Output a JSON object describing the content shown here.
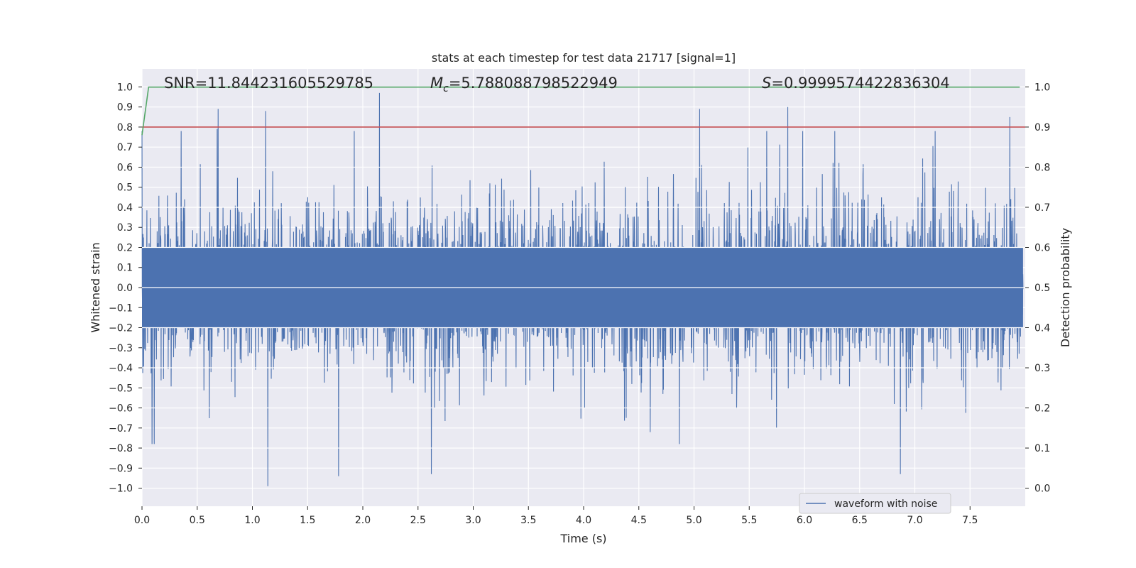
{
  "chart_data": {
    "type": "line",
    "title": "stats at each timestep for test data 21717 [signal=1]",
    "xlabel": "Time (s)",
    "ylabel": "Whitened strain",
    "y2label": "Detection probability",
    "xlim": [
      0.0,
      8.0
    ],
    "ylim": [
      -1.09,
      1.09
    ],
    "y2lim": [
      -0.045,
      1.045
    ],
    "xticks": [
      "0.0",
      "0.5",
      "1.0",
      "1.5",
      "2.0",
      "2.5",
      "3.0",
      "3.5",
      "4.0",
      "4.5",
      "5.0",
      "5.5",
      "6.0",
      "6.5",
      "7.0",
      "7.5"
    ],
    "yticks": [
      "1.0",
      "0.9",
      "0.8",
      "0.7",
      "0.6",
      "0.5",
      "0.4",
      "0.3",
      "0.2",
      "0.1",
      "0.0",
      "−0.1",
      "−0.2",
      "−0.3",
      "−0.4",
      "−0.5",
      "−0.6",
      "−0.7",
      "−0.8",
      "−0.9",
      "−1.0"
    ],
    "y2ticks": [
      "1.0",
      "0.9",
      "0.8",
      "0.7",
      "0.6",
      "0.5",
      "0.4",
      "0.3",
      "0.2",
      "0.1",
      "0.0"
    ],
    "annotations": {
      "snr": "SNR=11.844231605529785",
      "mc_symbol": "M",
      "mc_subscript": "c",
      "mc_value": "=5.788088798522949",
      "s_symbol": "S",
      "s_value": "=0.9999574422836304"
    },
    "series": [
      {
        "name": "waveform with noise",
        "color": "#4c72b0",
        "axis": "left",
        "description": "dense noisy whitened strain, roughly symmetric about 0 with envelope ~±0.4 and spikes up to ~±1.0",
        "peaks": [
          {
            "x": 0.0,
            "y": 0.78
          },
          {
            "x": 0.68,
            "y": 0.79
          },
          {
            "x": 0.69,
            "y": 0.89
          },
          {
            "x": 1.12,
            "y": 0.88
          },
          {
            "x": 1.14,
            "y": -0.99
          },
          {
            "x": 1.78,
            "y": -0.94
          },
          {
            "x": 2.15,
            "y": 0.97
          },
          {
            "x": 2.62,
            "y": -0.93
          },
          {
            "x": 5.05,
            "y": 0.89
          },
          {
            "x": 5.85,
            "y": 0.9
          },
          {
            "x": 6.87,
            "y": -0.93
          },
          {
            "x": 7.86,
            "y": 0.85
          }
        ]
      },
      {
        "name": "detection probability",
        "color": "#55a868",
        "axis": "right",
        "x": [
          0.0,
          0.06,
          7.95
        ],
        "values": [
          0.88,
          0.9995,
          0.9995
        ]
      },
      {
        "name": "threshold",
        "color": "#c44e52",
        "axis": "right",
        "x": [
          0.0,
          8.0
        ],
        "values": [
          0.9,
          0.9
        ]
      }
    ],
    "legend": {
      "entries": [
        "waveform with noise"
      ],
      "placement": "lower-right"
    }
  }
}
